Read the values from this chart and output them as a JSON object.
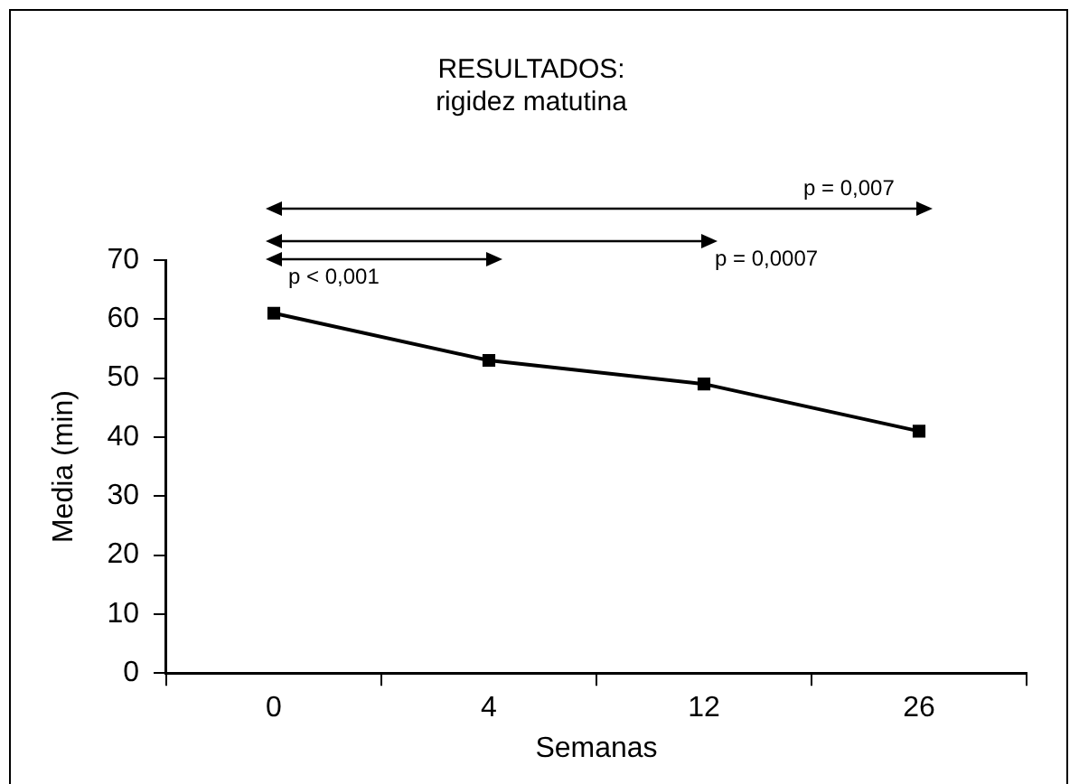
{
  "chart_data": {
    "type": "line",
    "title": "RESULTADOS:",
    "subtitle": "rigidez matutina",
    "xlabel": "Semanas",
    "ylabel": "Media (min)",
    "categories": [
      "0",
      "4",
      "12",
      "26"
    ],
    "series": [
      {
        "color": "#000000",
        "values": [
          61,
          53,
          49,
          41
        ]
      }
    ],
    "ylim": [
      0,
      70
    ],
    "yticks": [
      0,
      10,
      20,
      30,
      40,
      50,
      60,
      70
    ],
    "grid": false,
    "legend": false,
    "marker": "square",
    "line_style": "solid",
    "annotations": [
      "p < 0,001",
      "p = 0,0007",
      "p = 0,007"
    ]
  }
}
